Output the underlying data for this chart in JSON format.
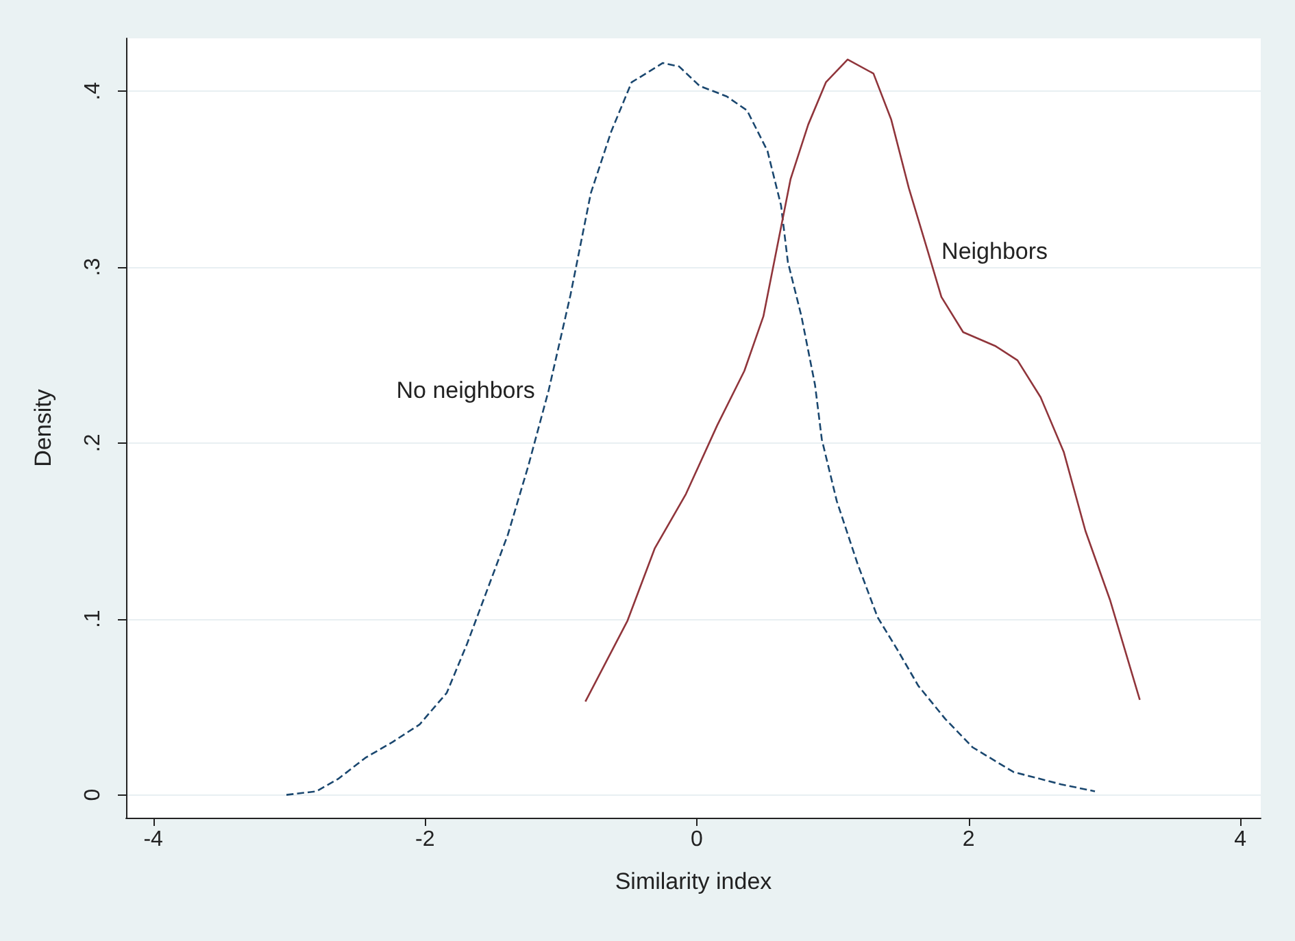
{
  "chart_data": {
    "type": "line",
    "xlabel": "Similarity index",
    "ylabel": "Density",
    "xlim": [
      -4.2,
      4.15
    ],
    "ylim": [
      -0.013,
      0.43
    ],
    "xticks": [
      -4,
      -2,
      0,
      2,
      4
    ],
    "yticks": [
      {
        "value": 0,
        "label": "0"
      },
      {
        "value": 0.1,
        "label": ".1"
      },
      {
        "value": 0.2,
        "label": ".2"
      },
      {
        "value": 0.3,
        "label": ".3"
      },
      {
        "value": 0.4,
        "label": ".4"
      }
    ],
    "grid": "y",
    "marker": "none",
    "series": [
      {
        "name": "No neighbors",
        "color": "#1a476f",
        "line_style": "dashed",
        "x": [
          -3.02,
          -2.8,
          -2.64,
          -2.44,
          -2.24,
          -2.04,
          -1.84,
          -1.69,
          -1.54,
          -1.39,
          -1.24,
          -1.09,
          -0.93,
          -0.78,
          -0.63,
          -0.48,
          -0.25,
          -0.13,
          0.02,
          0.22,
          0.37,
          0.52,
          0.62,
          0.67,
          0.77,
          0.87,
          0.92,
          1.03,
          1.18,
          1.33,
          1.48,
          1.63,
          1.83,
          2.03,
          2.33,
          2.68,
          2.93
        ],
        "values": [
          0.0,
          0.002,
          0.009,
          0.021,
          0.03,
          0.04,
          0.058,
          0.086,
          0.117,
          0.148,
          0.187,
          0.23,
          0.284,
          0.342,
          0.377,
          0.405,
          0.416,
          0.414,
          0.403,
          0.397,
          0.389,
          0.366,
          0.335,
          0.303,
          0.272,
          0.233,
          0.202,
          0.167,
          0.132,
          0.101,
          0.082,
          0.062,
          0.043,
          0.027,
          0.013,
          0.006,
          0.002
        ]
      },
      {
        "name": "Neighbors",
        "color": "#90353b",
        "line_style": "solid",
        "x": [
          -0.82,
          -0.51,
          -0.31,
          -0.08,
          0.15,
          0.35,
          0.49,
          0.59,
          0.69,
          0.82,
          0.95,
          1.11,
          1.3,
          1.43,
          1.56,
          1.7,
          1.8,
          1.96,
          2.2,
          2.36,
          2.53,
          2.7,
          2.86,
          3.04,
          3.26
        ],
        "values": [
          0.053,
          0.099,
          0.14,
          0.171,
          0.21,
          0.241,
          0.272,
          0.311,
          0.35,
          0.381,
          0.405,
          0.418,
          0.41,
          0.384,
          0.345,
          0.309,
          0.283,
          0.263,
          0.255,
          0.247,
          0.226,
          0.195,
          0.15,
          0.111,
          0.054
        ]
      }
    ]
  }
}
